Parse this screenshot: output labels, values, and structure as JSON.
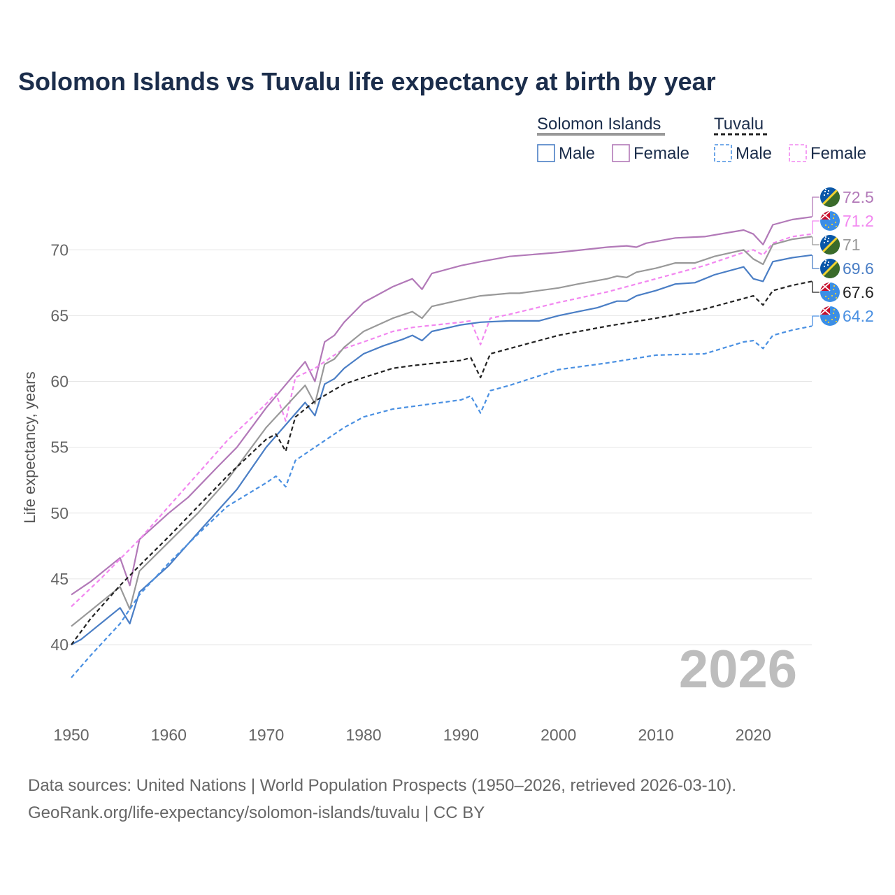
{
  "chart_data": {
    "type": "line",
    "title": "Solomon Islands vs Tuvalu life expectancy at birth by year",
    "ylabel": "Life expectancy, years",
    "xlabel": "",
    "xlim": [
      1950,
      2026
    ],
    "ylim": [
      35,
      75
    ],
    "x_ticks": [
      "1950",
      "1960",
      "1970",
      "1980",
      "1990",
      "2000",
      "2010",
      "2020"
    ],
    "y_ticks": [
      "40",
      "45",
      "50",
      "55",
      "60",
      "65",
      "70"
    ],
    "current_year": "2026",
    "legend": {
      "groups": [
        {
          "label": "Solomon Islands",
          "color": "#999999",
          "dashed": false
        },
        {
          "label": "Tuvalu",
          "color": "#222222",
          "dashed": true
        }
      ],
      "items": [
        {
          "label": "Male",
          "color": "#4a7ec5",
          "dashed": false
        },
        {
          "label": "Female",
          "color": "#b279b8",
          "dashed": false
        },
        {
          "label": "Male",
          "color": "#4a90e2",
          "dashed": true
        },
        {
          "label": "Female",
          "color": "#f287f0",
          "dashed": true
        }
      ]
    },
    "series": [
      {
        "name": "Solomon Islands Female",
        "country": "solomon",
        "color": "#b279b8",
        "dashed": false,
        "end_label": "72.5",
        "points": [
          [
            1950,
            43.8
          ],
          [
            1952,
            44.8
          ],
          [
            1955,
            46.6
          ],
          [
            1956,
            44.5
          ],
          [
            1957,
            48.0
          ],
          [
            1960,
            50.0
          ],
          [
            1962,
            51.2
          ],
          [
            1965,
            53.5
          ],
          [
            1967,
            55.0
          ],
          [
            1970,
            58.0
          ],
          [
            1974,
            61.5
          ],
          [
            1975,
            60.0
          ],
          [
            1976,
            63.0
          ],
          [
            1977,
            63.5
          ],
          [
            1978,
            64.5
          ],
          [
            1980,
            66.0
          ],
          [
            1983,
            67.2
          ],
          [
            1985,
            67.8
          ],
          [
            1986,
            67.0
          ],
          [
            1987,
            68.2
          ],
          [
            1990,
            68.8
          ],
          [
            1992,
            69.1
          ],
          [
            1995,
            69.5
          ],
          [
            2000,
            69.8
          ],
          [
            2005,
            70.2
          ],
          [
            2007,
            70.3
          ],
          [
            2008,
            70.2
          ],
          [
            2009,
            70.5
          ],
          [
            2012,
            70.9
          ],
          [
            2015,
            71.0
          ],
          [
            2019,
            71.5
          ],
          [
            2020,
            71.2
          ],
          [
            2021,
            70.4
          ],
          [
            2022,
            71.9
          ],
          [
            2024,
            72.3
          ],
          [
            2026,
            72.5
          ]
        ]
      },
      {
        "name": "Tuvalu Female",
        "country": "tuvalu",
        "color": "#f287f0",
        "dashed": true,
        "end_label": "71.2",
        "points": [
          [
            1950,
            42.9
          ],
          [
            1953,
            45.0
          ],
          [
            1955,
            46.5
          ],
          [
            1957,
            48.0
          ],
          [
            1960,
            50.5
          ],
          [
            1963,
            53.0
          ],
          [
            1966,
            55.5
          ],
          [
            1970,
            58.3
          ],
          [
            1971,
            59.1
          ],
          [
            1972,
            57.0
          ],
          [
            1973,
            60.3
          ],
          [
            1975,
            61.0
          ],
          [
            1978,
            62.5
          ],
          [
            1980,
            63.0
          ],
          [
            1983,
            63.8
          ],
          [
            1985,
            64.1
          ],
          [
            1990,
            64.5
          ],
          [
            1991,
            64.6
          ],
          [
            1992,
            62.8
          ],
          [
            1993,
            64.8
          ],
          [
            1995,
            65.1
          ],
          [
            2000,
            66.0
          ],
          [
            2005,
            66.8
          ],
          [
            2010,
            67.8
          ],
          [
            2015,
            68.8
          ],
          [
            2019,
            69.8
          ],
          [
            2020,
            70.0
          ],
          [
            2021,
            69.6
          ],
          [
            2022,
            70.5
          ],
          [
            2024,
            71.0
          ],
          [
            2026,
            71.2
          ]
        ]
      },
      {
        "name": "Solomon Islands Both",
        "country": "solomon",
        "color": "#999999",
        "dashed": false,
        "end_label": "71",
        "points": [
          [
            1950,
            41.4
          ],
          [
            1952,
            42.6
          ],
          [
            1955,
            44.4
          ],
          [
            1956,
            42.7
          ],
          [
            1957,
            45.6
          ],
          [
            1960,
            47.8
          ],
          [
            1963,
            50.0
          ],
          [
            1966,
            52.5
          ],
          [
            1970,
            56.5
          ],
          [
            1974,
            59.7
          ],
          [
            1975,
            58.3
          ],
          [
            1976,
            61.3
          ],
          [
            1977,
            61.7
          ],
          [
            1978,
            62.6
          ],
          [
            1980,
            63.8
          ],
          [
            1983,
            64.8
          ],
          [
            1985,
            65.3
          ],
          [
            1986,
            64.8
          ],
          [
            1987,
            65.7
          ],
          [
            1990,
            66.2
          ],
          [
            1992,
            66.5
          ],
          [
            1995,
            66.7
          ],
          [
            1996,
            66.7
          ],
          [
            2000,
            67.1
          ],
          [
            2002,
            67.4
          ],
          [
            2005,
            67.8
          ],
          [
            2006,
            68.0
          ],
          [
            2007,
            67.9
          ],
          [
            2008,
            68.3
          ],
          [
            2010,
            68.6
          ],
          [
            2012,
            69.0
          ],
          [
            2014,
            69.0
          ],
          [
            2016,
            69.5
          ],
          [
            2019,
            70.0
          ],
          [
            2020,
            69.3
          ],
          [
            2021,
            68.9
          ],
          [
            2022,
            70.4
          ],
          [
            2024,
            70.8
          ],
          [
            2026,
            71.0
          ]
        ]
      },
      {
        "name": "Solomon Islands Male",
        "country": "solomon",
        "color": "#4a7ec5",
        "dashed": false,
        "end_label": "69.6",
        "points": [
          [
            1950,
            40.0
          ],
          [
            1951,
            40.4
          ],
          [
            1952,
            41.0
          ],
          [
            1955,
            42.8
          ],
          [
            1956,
            41.6
          ],
          [
            1957,
            44.0
          ],
          [
            1960,
            46.0
          ],
          [
            1963,
            48.5
          ],
          [
            1967,
            51.8
          ],
          [
            1970,
            55.0
          ],
          [
            1974,
            58.4
          ],
          [
            1975,
            57.4
          ],
          [
            1976,
            59.8
          ],
          [
            1977,
            60.2
          ],
          [
            1978,
            61.0
          ],
          [
            1980,
            62.1
          ],
          [
            1982,
            62.7
          ],
          [
            1984,
            63.2
          ],
          [
            1985,
            63.5
          ],
          [
            1986,
            63.1
          ],
          [
            1987,
            63.8
          ],
          [
            1990,
            64.3
          ],
          [
            1992,
            64.5
          ],
          [
            1995,
            64.6
          ],
          [
            1996,
            64.6
          ],
          [
            1998,
            64.6
          ],
          [
            2000,
            65.0
          ],
          [
            2002,
            65.3
          ],
          [
            2004,
            65.6
          ],
          [
            2006,
            66.1
          ],
          [
            2007,
            66.1
          ],
          [
            2008,
            66.5
          ],
          [
            2010,
            66.9
          ],
          [
            2012,
            67.4
          ],
          [
            2014,
            67.5
          ],
          [
            2016,
            68.1
          ],
          [
            2019,
            68.7
          ],
          [
            2020,
            67.8
          ],
          [
            2021,
            67.6
          ],
          [
            2022,
            69.1
          ],
          [
            2024,
            69.4
          ],
          [
            2026,
            69.6
          ]
        ]
      },
      {
        "name": "Tuvalu Both",
        "country": "tuvalu",
        "color": "#222222",
        "dashed": true,
        "end_label": "67.6",
        "points": [
          [
            1950,
            40.0
          ],
          [
            1952,
            42.0
          ],
          [
            1955,
            44.5
          ],
          [
            1957,
            46.0
          ],
          [
            1960,
            48.2
          ],
          [
            1963,
            50.5
          ],
          [
            1966,
            52.8
          ],
          [
            1970,
            55.6
          ],
          [
            1971,
            56.0
          ],
          [
            1972,
            54.7
          ],
          [
            1973,
            57.3
          ],
          [
            1975,
            58.5
          ],
          [
            1978,
            59.8
          ],
          [
            1980,
            60.3
          ],
          [
            1983,
            61.0
          ],
          [
            1985,
            61.2
          ],
          [
            1990,
            61.6
          ],
          [
            1991,
            61.8
          ],
          [
            1992,
            60.3
          ],
          [
            1993,
            62.1
          ],
          [
            1995,
            62.5
          ],
          [
            2000,
            63.5
          ],
          [
            2005,
            64.2
          ],
          [
            2010,
            64.8
          ],
          [
            2015,
            65.5
          ],
          [
            2019,
            66.3
          ],
          [
            2020,
            66.5
          ],
          [
            2021,
            65.8
          ],
          [
            2022,
            66.9
          ],
          [
            2024,
            67.3
          ],
          [
            2026,
            67.6
          ]
        ]
      },
      {
        "name": "Tuvalu Male",
        "country": "tuvalu",
        "color": "#4a90e2",
        "dashed": true,
        "end_label": "64.2",
        "points": [
          [
            1950,
            37.5
          ],
          [
            1952,
            39.2
          ],
          [
            1955,
            41.6
          ],
          [
            1957,
            43.8
          ],
          [
            1960,
            46.2
          ],
          [
            1963,
            48.4
          ],
          [
            1966,
            50.5
          ],
          [
            1970,
            52.3
          ],
          [
            1971,
            52.8
          ],
          [
            1972,
            52.0
          ],
          [
            1973,
            54.0
          ],
          [
            1975,
            55.0
          ],
          [
            1978,
            56.5
          ],
          [
            1980,
            57.3
          ],
          [
            1983,
            57.9
          ],
          [
            1985,
            58.1
          ],
          [
            1990,
            58.6
          ],
          [
            1991,
            58.9
          ],
          [
            1992,
            57.6
          ],
          [
            1993,
            59.3
          ],
          [
            1995,
            59.7
          ],
          [
            2000,
            60.9
          ],
          [
            2005,
            61.4
          ],
          [
            2010,
            62.0
          ],
          [
            2015,
            62.1
          ],
          [
            2019,
            63.0
          ],
          [
            2020,
            63.1
          ],
          [
            2021,
            62.5
          ],
          [
            2022,
            63.5
          ],
          [
            2024,
            63.9
          ],
          [
            2026,
            64.2
          ]
        ]
      }
    ],
    "end_labels_order": [
      {
        "label": "72.5",
        "country": "solomon",
        "color": "#b279b8",
        "value": 72.5
      },
      {
        "label": "71.2",
        "country": "tuvalu",
        "color": "#f287f0",
        "value": 71.2
      },
      {
        "label": "71",
        "country": "solomon",
        "color": "#999999",
        "value": 71.0
      },
      {
        "label": "69.6",
        "country": "solomon",
        "color": "#4a7ec5",
        "value": 69.6
      },
      {
        "label": "67.6",
        "country": "tuvalu",
        "color": "#222222",
        "value": 67.6
      },
      {
        "label": "64.2",
        "country": "tuvalu",
        "color": "#4a90e2",
        "value": 64.2
      }
    ]
  },
  "footer": {
    "line1": "Data sources: United Nations | World Population Prospects (1950–2026, retrieved 2026-03-10).",
    "line2": "GeoRank.org/life-expectancy/solomon-islands/tuvalu | CC BY"
  },
  "colors": {
    "title": "#1b2d4b",
    "grid": "#e6e6e6",
    "solomon_blue": "#0a57a8",
    "solomon_green": "#3a6b2a",
    "solomon_stripe": "#f2d230",
    "tuvalu_blue": "#3b8ee6",
    "tuvalu_red": "#c8102e"
  }
}
